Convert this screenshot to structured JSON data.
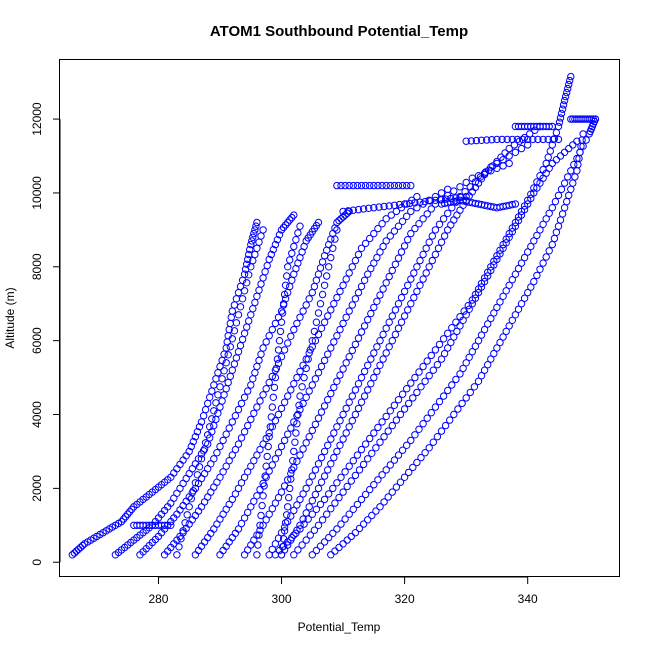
{
  "chart_data": {
    "type": "scatter",
    "title": "ATOM1 Southbound Potential_Temp",
    "xlabel": "Potential_Temp",
    "ylabel": "Altitude (m)",
    "xlim": [
      264,
      355
    ],
    "ylim": [
      -400,
      13600
    ],
    "xticks": [
      280,
      300,
      320,
      340
    ],
    "yticks": [
      0,
      2000,
      4000,
      6000,
      8000,
      10000,
      12000
    ],
    "marker": "open-circle",
    "color": "#0000ff",
    "grid": false,
    "series": [
      {
        "points": [
          [
            266,
            200
          ],
          [
            268,
            500
          ],
          [
            271,
            800
          ],
          [
            274,
            1100
          ],
          [
            276,
            1500
          ],
          [
            279,
            1900
          ],
          [
            282,
            2300
          ],
          [
            285,
            3000
          ],
          [
            287,
            3800
          ],
          [
            289,
            4800
          ],
          [
            291,
            5800
          ],
          [
            292,
            6800
          ],
          [
            294,
            7800
          ],
          [
            295,
            8600
          ],
          [
            296,
            9200
          ]
        ]
      },
      {
        "points": [
          [
            273,
            200
          ],
          [
            276,
            600
          ],
          [
            279,
            1000
          ],
          [
            282,
            1600
          ],
          [
            285,
            2400
          ],
          [
            288,
            3200
          ],
          [
            290,
            4200
          ],
          [
            292,
            5200
          ],
          [
            294,
            6200
          ],
          [
            296,
            7200
          ],
          [
            298,
            8200
          ],
          [
            300,
            9000
          ],
          [
            302,
            9400
          ]
        ]
      },
      {
        "points": [
          [
            277,
            200
          ],
          [
            280,
            700
          ],
          [
            283,
            1300
          ],
          [
            286,
            2000
          ],
          [
            289,
            2800
          ],
          [
            292,
            3800
          ],
          [
            295,
            4800
          ],
          [
            297,
            5800
          ],
          [
            300,
            6800
          ],
          [
            302,
            7800
          ],
          [
            304,
            8700
          ],
          [
            306,
            9200
          ]
        ]
      },
      {
        "points": [
          [
            281,
            200
          ],
          [
            284,
            800
          ],
          [
            287,
            1500
          ],
          [
            290,
            2300
          ],
          [
            293,
            3200
          ],
          [
            296,
            4200
          ],
          [
            299,
            5200
          ],
          [
            302,
            6300
          ],
          [
            305,
            7300
          ],
          [
            307,
            8300
          ],
          [
            309,
            9200
          ],
          [
            311,
            9500
          ]
        ]
      },
      {
        "points": [
          [
            286,
            200
          ],
          [
            289,
            900
          ],
          [
            292,
            1700
          ],
          [
            295,
            2600
          ],
          [
            298,
            3500
          ],
          [
            301,
            4500
          ],
          [
            304,
            5500
          ],
          [
            307,
            6500
          ],
          [
            310,
            7500
          ],
          [
            313,
            8500
          ],
          [
            317,
            9300
          ],
          [
            322,
            9900
          ]
        ]
      },
      {
        "points": [
          [
            290,
            200
          ],
          [
            293,
            900
          ],
          [
            296,
            1800
          ],
          [
            299,
            2800
          ],
          [
            302,
            3800
          ],
          [
            305,
            4800
          ],
          [
            308,
            5800
          ],
          [
            311,
            6800
          ],
          [
            314,
            7800
          ],
          [
            317,
            8700
          ],
          [
            321,
            9500
          ],
          [
            327,
            10100
          ]
        ]
      },
      {
        "points": [
          [
            294,
            200
          ],
          [
            297,
            1000
          ],
          [
            300,
            1900
          ],
          [
            303,
            2900
          ],
          [
            306,
            3900
          ],
          [
            309,
            4900
          ],
          [
            312,
            5900
          ],
          [
            315,
            6900
          ],
          [
            318,
            7900
          ],
          [
            321,
            8900
          ],
          [
            325,
            9700
          ],
          [
            331,
            10400
          ],
          [
            337,
            10800
          ]
        ]
      },
      {
        "points": [
          [
            298,
            200
          ],
          [
            301,
            1100
          ],
          [
            304,
            2000
          ],
          [
            307,
            3000
          ],
          [
            310,
            4000
          ],
          [
            313,
            5000
          ],
          [
            316,
            6000
          ],
          [
            319,
            7000
          ],
          [
            322,
            8000
          ],
          [
            325,
            9000
          ],
          [
            329,
            9900
          ],
          [
            334,
            10700
          ],
          [
            340,
            11300
          ]
        ]
      },
      {
        "points": [
          [
            300,
            200
          ],
          [
            303,
            1000
          ],
          [
            306,
            2000
          ],
          [
            309,
            3000
          ],
          [
            312,
            4000
          ],
          [
            315,
            5000
          ],
          [
            318,
            6000
          ],
          [
            321,
            7000
          ],
          [
            324,
            8000
          ],
          [
            327,
            9000
          ],
          [
            330,
            9800
          ],
          [
            333,
            10500
          ],
          [
            337,
            11200
          ],
          [
            342,
            11800
          ]
        ]
      },
      {
        "points": [
          [
            302,
            200
          ],
          [
            306,
            1000
          ],
          [
            310,
            1900
          ],
          [
            314,
            2800
          ],
          [
            318,
            3700
          ],
          [
            322,
            4600
          ],
          [
            326,
            5500
          ],
          [
            329,
            6400
          ],
          [
            332,
            7300
          ],
          [
            335,
            8200
          ],
          [
            338,
            9100
          ],
          [
            341,
            10000
          ],
          [
            344,
            10800
          ],
          [
            348,
            11400
          ]
        ]
      },
      {
        "points": [
          [
            305,
            200
          ],
          [
            309,
            900
          ],
          [
            313,
            1700
          ],
          [
            317,
            2500
          ],
          [
            321,
            3300
          ],
          [
            325,
            4200
          ],
          [
            329,
            5100
          ],
          [
            332,
            6000
          ],
          [
            335,
            6900
          ],
          [
            338,
            7800
          ],
          [
            341,
            8700
          ],
          [
            344,
            9600
          ],
          [
            347,
            10600
          ],
          [
            350,
            11600
          ],
          [
            351,
            12000
          ]
        ]
      },
      {
        "points": [
          [
            308,
            200
          ],
          [
            312,
            800
          ],
          [
            316,
            1500
          ],
          [
            320,
            2300
          ],
          [
            324,
            3100
          ],
          [
            328,
            4000
          ],
          [
            332,
            4900
          ],
          [
            335,
            5800
          ],
          [
            338,
            6700
          ],
          [
            341,
            7600
          ],
          [
            344,
            8600
          ],
          [
            346,
            9600
          ],
          [
            348,
            10600
          ],
          [
            349,
            11600
          ]
        ]
      },
      {
        "points": [
          [
            299,
            200
          ],
          [
            303,
            900
          ],
          [
            307,
            1700
          ],
          [
            311,
            2600
          ],
          [
            315,
            3500
          ],
          [
            319,
            4400
          ],
          [
            323,
            5300
          ],
          [
            327,
            6200
          ],
          [
            331,
            7100
          ],
          [
            334,
            8000
          ],
          [
            337,
            8900
          ],
          [
            340,
            9800
          ],
          [
            343,
            10800
          ],
          [
            345,
            11800
          ],
          [
            346,
            12500
          ],
          [
            347,
            13150
          ]
        ]
      },
      {
        "points": [
          [
            310,
            9500
          ],
          [
            315,
            9600
          ],
          [
            320,
            9700
          ],
          [
            325,
            9800
          ],
          [
            330,
            9900
          ]
        ]
      },
      {
        "points": [
          [
            309,
            10200
          ],
          [
            313,
            10200
          ],
          [
            317,
            10200
          ],
          [
            321,
            10200
          ]
        ]
      },
      {
        "points": [
          [
            330,
            11400
          ],
          [
            335,
            11450
          ],
          [
            340,
            11450
          ],
          [
            345,
            11450
          ]
        ]
      },
      {
        "points": [
          [
            338,
            11800
          ],
          [
            341,
            11800
          ],
          [
            344,
            11800
          ]
        ]
      },
      {
        "points": [
          [
            347,
            12000
          ],
          [
            349,
            12000
          ],
          [
            351,
            12000
          ]
        ]
      },
      {
        "points": [
          [
            326,
            9700
          ],
          [
            329,
            9800
          ],
          [
            332,
            9700
          ],
          [
            335,
            9600
          ],
          [
            338,
            9700
          ]
        ]
      },
      {
        "points": [
          [
            276,
            1000
          ],
          [
            279,
            1000
          ],
          [
            282,
            1000
          ]
        ]
      },
      {
        "points": [
          [
            300,
            200
          ],
          [
            301,
            1500
          ],
          [
            302,
            3000
          ],
          [
            303,
            4500
          ],
          [
            305,
            6000
          ],
          [
            307,
            7500
          ],
          [
            309,
            9000
          ]
        ]
      },
      {
        "points": [
          [
            296,
            200
          ],
          [
            297,
            1800
          ],
          [
            298,
            3400
          ],
          [
            299,
            5000
          ],
          [
            300,
            6500
          ],
          [
            301,
            8000
          ],
          [
            303,
            9100
          ]
        ]
      },
      {
        "points": [
          [
            283,
            200
          ],
          [
            285,
            1500
          ],
          [
            287,
            2800
          ],
          [
            289,
            4100
          ],
          [
            291,
            5400
          ],
          [
            293,
            6700
          ],
          [
            295,
            8000
          ],
          [
            297,
            9000
          ]
        ]
      }
    ]
  }
}
